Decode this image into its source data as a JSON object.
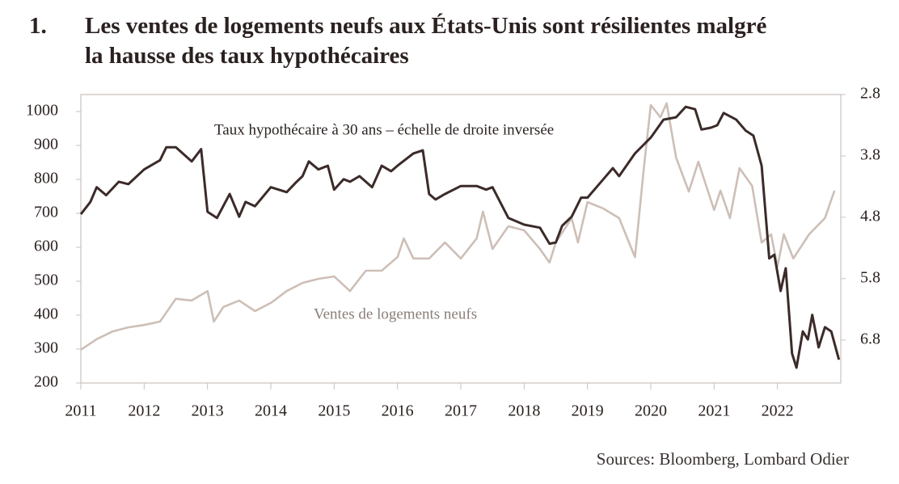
{
  "chart_data": {
    "type": "line",
    "title_number": "1.",
    "title": [
      "Les ventes de logements neufs aux États-Unis sont résilientes malgré",
      "la hausse des taux hypothécaires"
    ],
    "source": "Sources: Bloomberg, Lombard Odier",
    "xlim": [
      2011,
      2023
    ],
    "xticks": [
      2011,
      2012,
      2013,
      2014,
      2015,
      2016,
      2017,
      2018,
      2019,
      2020,
      2021,
      2022
    ],
    "ylim": [
      200,
      1050
    ],
    "yticks": [
      200,
      300,
      400,
      500,
      600,
      700,
      800,
      900,
      1000
    ],
    "y2lim": [
      2.8,
      7.5
    ],
    "y2ticks": [
      2.8,
      3.8,
      4.8,
      5.8,
      6.8
    ],
    "y2_inverted": true,
    "grid": false,
    "series": [
      {
        "name": "Taux hypothécaire à 30 ans – échelle de droite inversée",
        "color": "#3b2b29",
        "axis": "y2",
        "x": [
          2011.0,
          2011.15,
          2011.25,
          2011.4,
          2011.6,
          2011.75,
          2012.0,
          2012.25,
          2012.35,
          2012.5,
          2012.75,
          2012.9,
          2013.0,
          2013.15,
          2013.35,
          2013.5,
          2013.6,
          2013.75,
          2014.0,
          2014.25,
          2014.4,
          2014.5,
          2014.6,
          2014.75,
          2014.9,
          2015.0,
          2015.15,
          2015.25,
          2015.4,
          2015.6,
          2015.75,
          2015.9,
          2016.0,
          2016.25,
          2016.4,
          2016.5,
          2016.6,
          2016.75,
          2017.0,
          2017.25,
          2017.4,
          2017.5,
          2017.75,
          2018.0,
          2018.25,
          2018.4,
          2018.5,
          2018.6,
          2018.75,
          2018.9,
          2019.0,
          2019.25,
          2019.4,
          2019.5,
          2019.75,
          2020.0,
          2020.2,
          2020.4,
          2020.55,
          2020.7,
          2020.8,
          2020.95,
          2021.05,
          2021.15,
          2021.35,
          2021.5,
          2021.62,
          2021.75,
          2021.87,
          2021.95,
          2022.05,
          2022.13,
          2022.23,
          2022.3,
          2022.4,
          2022.48,
          2022.55,
          2022.65,
          2022.75,
          2022.85,
          2022.97
        ],
        "values": [
          4.75,
          4.55,
          4.31,
          4.44,
          4.22,
          4.26,
          4.02,
          3.87,
          3.66,
          3.66,
          3.89,
          3.69,
          4.71,
          4.81,
          4.42,
          4.79,
          4.55,
          4.62,
          4.31,
          4.39,
          4.23,
          4.13,
          3.89,
          4.02,
          3.96,
          4.35,
          4.18,
          4.22,
          4.13,
          4.31,
          3.96,
          4.05,
          3.96,
          3.76,
          3.71,
          4.42,
          4.51,
          4.42,
          4.29,
          4.29,
          4.35,
          4.31,
          4.81,
          4.92,
          4.97,
          5.23,
          5.21,
          4.94,
          4.79,
          4.48,
          4.48,
          4.18,
          4.0,
          4.13,
          3.76,
          3.5,
          3.21,
          3.17,
          3.0,
          3.04,
          3.37,
          3.34,
          3.3,
          3.1,
          3.21,
          3.39,
          3.47,
          3.96,
          5.47,
          5.41,
          6.0,
          5.63,
          7.02,
          7.25,
          6.66,
          6.79,
          6.39,
          6.92,
          6.59,
          6.66,
          7.12
        ]
      },
      {
        "name": "Ventes de logements neufs",
        "color": "#cdbfb7",
        "axis": "y",
        "x": [
          2011.0,
          2011.25,
          2011.5,
          2011.75,
          2012.0,
          2012.25,
          2012.5,
          2012.75,
          2013.0,
          2013.1,
          2013.25,
          2013.5,
          2013.75,
          2014.0,
          2014.25,
          2014.5,
          2014.75,
          2015.0,
          2015.25,
          2015.5,
          2015.75,
          2016.0,
          2016.1,
          2016.25,
          2016.5,
          2016.75,
          2017.0,
          2017.25,
          2017.35,
          2017.5,
          2017.75,
          2018.0,
          2018.25,
          2018.4,
          2018.5,
          2018.75,
          2018.85,
          2019.0,
          2019.25,
          2019.5,
          2019.75,
          2019.9,
          2020.0,
          2020.15,
          2020.25,
          2020.4,
          2020.6,
          2020.75,
          2021.0,
          2021.1,
          2021.25,
          2021.4,
          2021.6,
          2021.75,
          2021.9,
          2022.0,
          2022.1,
          2022.25,
          2022.5,
          2022.75,
          2022.9
        ],
        "values": [
          298,
          329,
          352,
          364,
          371,
          381,
          448,
          443,
          471,
          381,
          424,
          443,
          412,
          436,
          471,
          495,
          507,
          514,
          471,
          531,
          531,
          571,
          626,
          567,
          567,
          614,
          567,
          626,
          705,
          595,
          662,
          650,
          595,
          555,
          614,
          686,
          614,
          733,
          714,
          686,
          571,
          852,
          1019,
          983,
          1024,
          864,
          764,
          852,
          710,
          767,
          686,
          833,
          781,
          614,
          638,
          543,
          638,
          567,
          638,
          686,
          767
        ]
      }
    ]
  }
}
